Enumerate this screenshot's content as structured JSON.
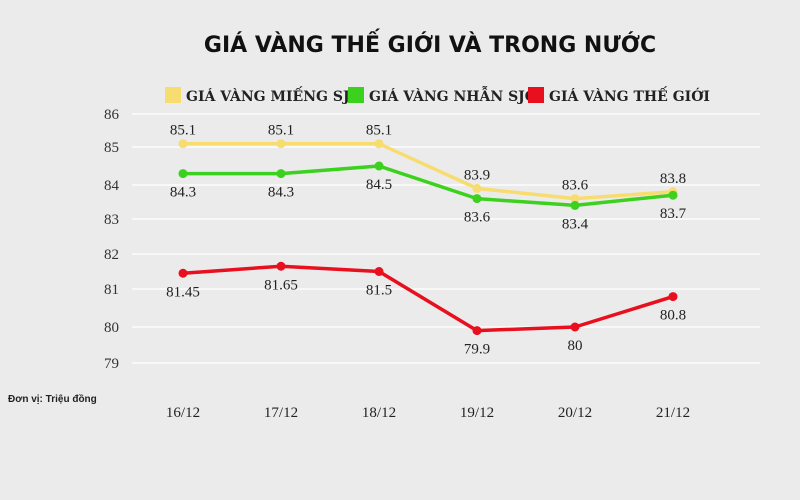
{
  "chart_data": {
    "type": "line",
    "title": "GIÁ VÀNG THẾ GIỚI VÀ TRONG NƯỚC",
    "unit_note": "Đơn vị: Triệu đồng",
    "categories": [
      "16/12",
      "17/12",
      "18/12",
      "19/12",
      "20/12",
      "21/12"
    ],
    "y_ticks": [
      "86",
      "85",
      "84",
      "83",
      "82",
      "81",
      "80",
      "79"
    ],
    "y_tick_values": [
      86,
      85,
      84,
      83,
      82,
      81,
      80,
      79
    ],
    "legend_position": "top",
    "series": [
      {
        "name": "GIÁ VÀNG MIẾNG SJC",
        "color": "#f7dc6f",
        "values": [
          85.1,
          85.1,
          85.1,
          83.9,
          83.6,
          83.8
        ],
        "labels": [
          "85.1",
          "85.1",
          "85.1",
          "83.9",
          "83.6",
          "83.8"
        ],
        "label_side": [
          "above",
          "above",
          "above",
          "above",
          "above",
          "above"
        ]
      },
      {
        "name": "GIÁ VÀNG NHẪN SJC",
        "color": "#3cd11e",
        "values": [
          84.3,
          84.3,
          84.5,
          83.6,
          83.4,
          83.7
        ],
        "labels": [
          "84.3",
          "84.3",
          "84.5",
          "83.6",
          "83.4",
          "83.7"
        ],
        "label_side": [
          "below",
          "below",
          "below",
          "below",
          "below",
          "below"
        ]
      },
      {
        "name": "GIÁ VÀNG THẾ GIỚI",
        "color": "#e8101e",
        "values": [
          81.45,
          81.65,
          81.5,
          79.9,
          80,
          80.8
        ],
        "labels": [
          "81.45",
          "81.65",
          "81.5",
          "79.9",
          "80",
          "80.8"
        ],
        "label_side": [
          "below",
          "below",
          "below",
          "below",
          "below",
          "below"
        ]
      }
    ]
  }
}
